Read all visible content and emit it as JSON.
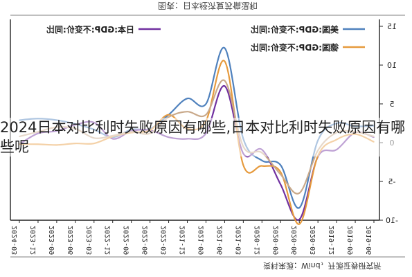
{
  "overlay_title": "2024日本对比利时失败原因有哪些,日本对比利时失败原因有哪些呢",
  "figure_caption": "图表：日本经济复苏偏温和",
  "source_note": "资料来源：Wind，开源证券研究所",
  "chart_data": {
    "type": "line",
    "title": "",
    "xlabel": "",
    "ylabel": "",
    "ylim": [
      -10,
      15
    ],
    "yticks": [
      -10,
      -5,
      0,
      5,
      10,
      15
    ],
    "x": [
      "2019-06",
      "2019-09",
      "2019-12",
      "2020-03",
      "2020-06",
      "2020-09",
      "2020-12",
      "2021-03",
      "2021-06",
      "2021-09",
      "2021-12",
      "2022-03",
      "2022-06",
      "2022-09",
      "2022-12",
      "2023-03",
      "2023-06",
      "2023-09",
      "2023-12",
      "2024-03"
    ],
    "x_tick_labels": [
      "2019-06",
      "2019-09",
      "2019-12",
      "2020-03",
      "2020-06",
      "2020-09",
      "2020-12",
      "2021-03",
      "2021-06",
      "2021-09",
      "2021-12",
      "2022-03",
      "2022-06",
      "2022-09",
      "2022-12",
      "2023-03",
      "2023-06",
      "2023-09",
      "2023-12",
      "2024-03"
    ],
    "grid": false,
    "legend_position": "top",
    "series": [
      {
        "name": "美国:GDP:不变价:同比",
        "color": "#4f81bd",
        "values": [
          2.2,
          2.1,
          2.5,
          0.3,
          -8.4,
          -2.9,
          -2.3,
          0.5,
          12.2,
          5.0,
          5.7,
          3.6,
          1.8,
          1.7,
          0.7,
          1.7,
          2.4,
          2.9,
          3.1,
          2.9
        ]
      },
      {
        "name": "日本:GDP:不变价:同比",
        "color": "#7030a0",
        "values": [
          0.7,
          1.3,
          -0.9,
          -1.8,
          -9.9,
          -5.4,
          -0.9,
          -1.4,
          7.3,
          1.2,
          0.5,
          0.7,
          1.6,
          1.5,
          0.5,
          2.6,
          2.3,
          1.5,
          1.2,
          -0.2
        ]
      },
      {
        "name": "德国:GDP:不变价:同比",
        "color": "#e69a3d",
        "values": [
          0.1,
          1.1,
          0.4,
          -1.7,
          -10.5,
          -3.8,
          -3.0,
          -2.9,
          10.5,
          2.8,
          1.8,
          3.6,
          1.6,
          1.3,
          0.8,
          -0.1,
          -0.1,
          -0.3,
          -0.2,
          -0.2
        ]
      },
      {
        "name": "",
        "color": "#c9a98a",
        "values": [
          0.8,
          1.4,
          1.3,
          -1.0,
          -6.5,
          -4.1,
          -1.3,
          -0.5,
          8.0,
          3.6,
          4.0,
          3.3,
          1.2,
          1.4,
          0.9,
          0.6,
          1.8,
          2.0,
          1.4,
          0.8
        ]
      }
    ]
  }
}
